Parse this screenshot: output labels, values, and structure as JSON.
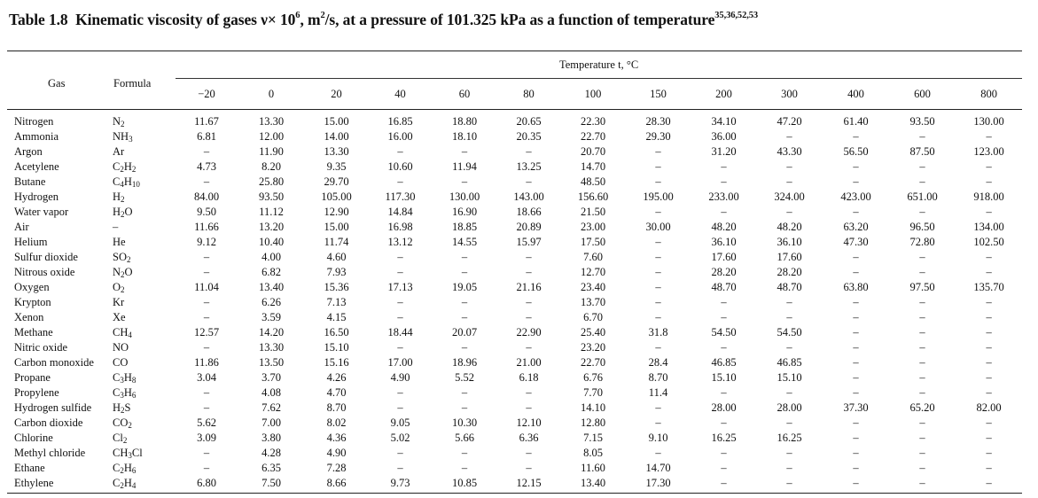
{
  "caption": {
    "number": "Table 1.8",
    "text_before": "Kinematic viscosity of gases  ν× 10",
    "exp_6": "6",
    "text_middle": ", m",
    "exp_2": "2",
    "text_after": "/s, at a pressure of 101.325 kPa as a function of temperature",
    "refs": "35,36,52,53"
  },
  "header": {
    "gas": "Gas",
    "formula": "Formula",
    "temperature": "Temperature t, °C",
    "temps": [
      "−20",
      "0",
      "20",
      "40",
      "60",
      "80",
      "100",
      "150",
      "200",
      "300",
      "400",
      "600",
      "800"
    ]
  },
  "rows": [
    {
      "gas": "Nitrogen",
      "formula": [
        [
          "N",
          "2"
        ]
      ],
      "values": [
        "11.67",
        "13.30",
        "15.00",
        "16.85",
        "18.80",
        "20.65",
        "22.30",
        "28.30",
        "34.10",
        "47.20",
        "61.40",
        "93.50",
        "130.00"
      ]
    },
    {
      "gas": "Ammonia",
      "formula": [
        [
          "NH",
          "3"
        ]
      ],
      "values": [
        "6.81",
        "12.00",
        "14.00",
        "16.00",
        "18.10",
        "20.35",
        "22.70",
        "29.30",
        "36.00",
        "–",
        "–",
        "–",
        "–"
      ]
    },
    {
      "gas": "Argon",
      "formula": [
        [
          "Ar",
          ""
        ]
      ],
      "values": [
        "–",
        "11.90",
        "13.30",
        "–",
        "–",
        "–",
        "20.70",
        "–",
        "31.20",
        "43.30",
        "56.50",
        "87.50",
        "123.00"
      ]
    },
    {
      "gas": "Acetylene",
      "formula": [
        [
          "C",
          "2"
        ],
        [
          "H",
          "2"
        ]
      ],
      "values": [
        "4.73",
        "8.20",
        "9.35",
        "10.60",
        "11.94",
        "13.25",
        "14.70",
        "–",
        "–",
        "–",
        "–",
        "–",
        "–"
      ]
    },
    {
      "gas": "Butane",
      "formula": [
        [
          "C",
          "4"
        ],
        [
          "H",
          "10"
        ]
      ],
      "values": [
        "–",
        "25.80",
        "29.70",
        "–",
        "–",
        "–",
        "48.50",
        "–",
        "–",
        "–",
        "–",
        "–",
        "–"
      ]
    },
    {
      "gas": "Hydrogen",
      "formula": [
        [
          "H",
          "2"
        ]
      ],
      "values": [
        "84.00",
        "93.50",
        "105.00",
        "117.30",
        "130.00",
        "143.00",
        "156.60",
        "195.00",
        "233.00",
        "324.00",
        "423.00",
        "651.00",
        "918.00"
      ]
    },
    {
      "gas": "Water vapor",
      "formula": [
        [
          "H",
          "2"
        ],
        [
          "O",
          ""
        ]
      ],
      "values": [
        "9.50",
        "11.12",
        "12.90",
        "14.84",
        "16.90",
        "18.66",
        "21.50",
        "–",
        "–",
        "–",
        "–",
        "–",
        "–"
      ]
    },
    {
      "gas": "Air",
      "formula": [
        [
          "–",
          ""
        ]
      ],
      "values": [
        "11.66",
        "13.20",
        "15.00",
        "16.98",
        "18.85",
        "20.89",
        "23.00",
        "30.00",
        "48.20",
        "48.20",
        "63.20",
        "96.50",
        "134.00"
      ]
    },
    {
      "gas": "Helium",
      "formula": [
        [
          "He",
          ""
        ]
      ],
      "values": [
        "9.12",
        "10.40",
        "11.74",
        "13.12",
        "14.55",
        "15.97",
        "17.50",
        "–",
        "36.10",
        "36.10",
        "47.30",
        "72.80",
        "102.50"
      ]
    },
    {
      "gas": "Sulfur dioxide",
      "formula": [
        [
          "SO",
          "2"
        ]
      ],
      "values": [
        "–",
        "4.00",
        "4.60",
        "–",
        "–",
        "–",
        "7.60",
        "–",
        "17.60",
        "17.60",
        "–",
        "–",
        "–"
      ]
    },
    {
      "gas": "Nitrous oxide",
      "formula": [
        [
          "N",
          "2"
        ],
        [
          "O",
          ""
        ]
      ],
      "values": [
        "–",
        "6.82",
        "7.93",
        "–",
        "–",
        "–",
        "12.70",
        "–",
        "28.20",
        "28.20",
        "–",
        "–",
        "–"
      ]
    },
    {
      "gas": "Oxygen",
      "formula": [
        [
          "O",
          "2"
        ]
      ],
      "values": [
        "11.04",
        "13.40",
        "15.36",
        "17.13",
        "19.05",
        "21.16",
        "23.40",
        "–",
        "48.70",
        "48.70",
        "63.80",
        "97.50",
        "135.70"
      ]
    },
    {
      "gas": "Krypton",
      "formula": [
        [
          "Kr",
          ""
        ]
      ],
      "values": [
        "–",
        "6.26",
        "7.13",
        "–",
        "–",
        "–",
        "13.70",
        "–",
        "–",
        "–",
        "–",
        "–",
        "–"
      ]
    },
    {
      "gas": "Xenon",
      "formula": [
        [
          "Xe",
          ""
        ]
      ],
      "values": [
        "–",
        "3.59",
        "4.15",
        "–",
        "–",
        "–",
        "6.70",
        "–",
        "–",
        "–",
        "–",
        "–",
        "–"
      ]
    },
    {
      "gas": "Methane",
      "formula": [
        [
          "CH",
          "4"
        ]
      ],
      "values": [
        "12.57",
        "14.20",
        "16.50",
        "18.44",
        "20.07",
        "22.90",
        "25.40",
        "31.8",
        "54.50",
        "54.50",
        "–",
        "–",
        "–"
      ]
    },
    {
      "gas": "Nitric oxide",
      "formula": [
        [
          "NO",
          ""
        ]
      ],
      "values": [
        "–",
        "13.30",
        "15.10",
        "–",
        "–",
        "–",
        "23.20",
        "–",
        "–",
        "–",
        "–",
        "–",
        "–"
      ]
    },
    {
      "gas": "Carbon monoxide",
      "formula": [
        [
          "CO",
          ""
        ]
      ],
      "values": [
        "11.86",
        "13.50",
        "15.16",
        "17.00",
        "18.96",
        "21.00",
        "22.70",
        "28.4",
        "46.85",
        "46.85",
        "–",
        "–",
        "–"
      ]
    },
    {
      "gas": "Propane",
      "formula": [
        [
          "C",
          "3"
        ],
        [
          "H",
          "8"
        ]
      ],
      "values": [
        "3.04",
        "3.70",
        "4.26",
        "4.90",
        "5.52",
        "6.18",
        "6.76",
        "8.70",
        "15.10",
        "15.10",
        "–",
        "–",
        "–"
      ]
    },
    {
      "gas": "Propylene",
      "formula": [
        [
          "C",
          "3"
        ],
        [
          "H",
          "6"
        ]
      ],
      "values": [
        "–",
        "4.08",
        "4.70",
        "–",
        "–",
        "–",
        "7.70",
        "11.4",
        "–",
        "–",
        "–",
        "–",
        "–"
      ]
    },
    {
      "gas": "Hydrogen sulfide",
      "formula": [
        [
          "H",
          "2"
        ],
        [
          "S",
          ""
        ]
      ],
      "values": [
        "–",
        "7.62",
        "8.70",
        "–",
        "–",
        "–",
        "14.10",
        "–",
        "28.00",
        "28.00",
        "37.30",
        "65.20",
        "82.00"
      ]
    },
    {
      "gas": "Carbon dioxide",
      "formula": [
        [
          "CO",
          "2"
        ]
      ],
      "values": [
        "5.62",
        "7.00",
        "8.02",
        "9.05",
        "10.30",
        "12.10",
        "12.80",
        "–",
        "–",
        "–",
        "–",
        "–",
        "–"
      ]
    },
    {
      "gas": "Chlorine",
      "formula": [
        [
          "Cl",
          "2"
        ]
      ],
      "values": [
        "3.09",
        "3.80",
        "4.36",
        "5.02",
        "5.66",
        "6.36",
        "7.15",
        "9.10",
        "16.25",
        "16.25",
        "–",
        "–",
        "–"
      ]
    },
    {
      "gas": "Methyl chloride",
      "formula": [
        [
          "CH",
          "3"
        ],
        [
          "Cl",
          ""
        ]
      ],
      "values": [
        "–",
        "4.28",
        "4.90",
        "–",
        "–",
        "–",
        "8.05",
        "–",
        "–",
        "–",
        "–",
        "–",
        "–"
      ]
    },
    {
      "gas": "Ethane",
      "formula": [
        [
          "C",
          "2"
        ],
        [
          "H",
          "6"
        ]
      ],
      "values": [
        "–",
        "6.35",
        "7.28",
        "–",
        "–",
        "–",
        "11.60",
        "14.70",
        "–",
        "–",
        "–",
        "–",
        "–"
      ]
    },
    {
      "gas": "Ethylene",
      "formula": [
        [
          "C",
          "2"
        ],
        [
          "H",
          "4"
        ]
      ],
      "values": [
        "6.80",
        "7.50",
        "8.66",
        "9.73",
        "10.85",
        "12.15",
        "13.40",
        "17.30",
        "–",
        "–",
        "–",
        "–",
        "–"
      ]
    }
  ]
}
